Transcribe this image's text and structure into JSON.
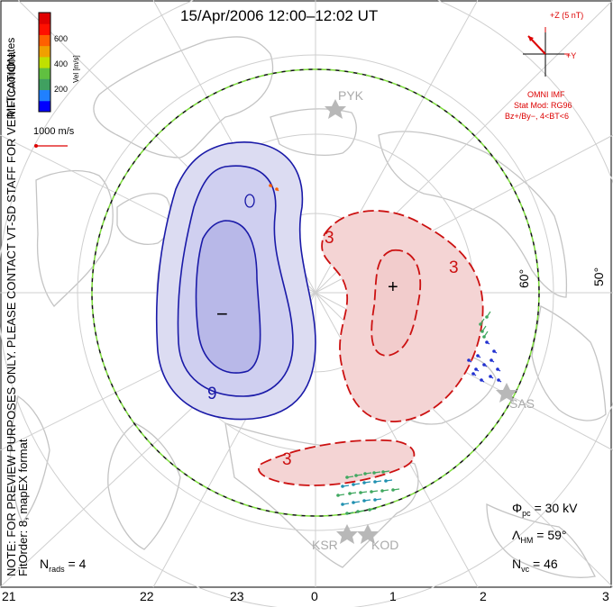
{
  "title": "15/Apr/2006 12:00–12:02 UT",
  "note_line1": "NOTE: FOR PREVIEW PURPOSES ONLY. PLEASE CONTACT VT-SD STAFF FOR VERIFICATION.",
  "note_line2": "FitOrder: 8, mapEX format",
  "coords_label": "MLT coordinates",
  "colorbar": {
    "title": "Vel [m/s]",
    "ticks": [
      "600",
      "400",
      "200"
    ],
    "colors": [
      "#0000ff",
      "#2080ff",
      "#40a060",
      "#60c040",
      "#c0e000",
      "#f0a000",
      "#ff6000",
      "#ff1000",
      "#e00000"
    ]
  },
  "vector_scale": "1000 m/s",
  "imf": {
    "bz_label": "+Z (5 nT)",
    "by_label": "+Y",
    "source": "OMNI IMF",
    "stat_mod": "Stat Mod: RG96",
    "condition": "Bz+/By−, 4<BT<6"
  },
  "latitude_labels": [
    "60°",
    "50°"
  ],
  "contour_labels": {
    "neg": "9",
    "pos_a": "3",
    "pos_b": "3",
    "pos_c": "3"
  },
  "extrema": {
    "min": "−",
    "max": "+"
  },
  "radars": [
    "PYK",
    "SAS",
    "KSR",
    "KOD"
  ],
  "stats": {
    "phi_pc": {
      "symbol": "Φ",
      "sub": "pc",
      "value": "= 30 kV"
    },
    "lambda_hm": {
      "symbol": "Λ",
      "sub": "HM",
      "value": "= 59°"
    },
    "n_vc": {
      "symbol": "N",
      "sub": "vc",
      "value": "= 46"
    },
    "n_rads": {
      "symbol": "N",
      "sub": "rads",
      "value": "= 4"
    }
  },
  "mlt_labels": [
    "21",
    "22",
    "23",
    "0",
    "1",
    "2",
    "3"
  ],
  "colors": {
    "neg": "#1a1aa8",
    "pos": "#cc1111",
    "neg_fill": "#c8c8ee",
    "pos_fill": "#f4d4d4",
    "map_line": "#c8c8c8",
    "boundary": "#7ddc3c"
  }
}
